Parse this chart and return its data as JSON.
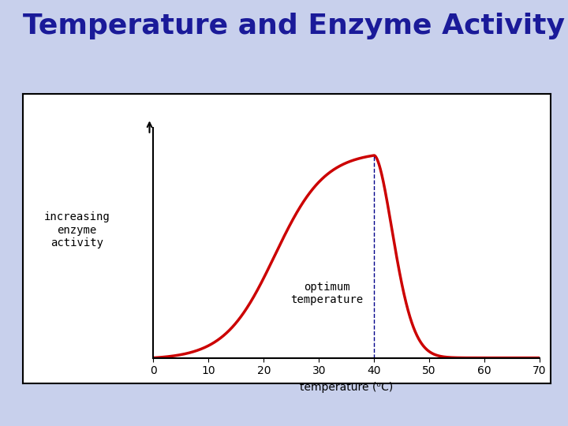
{
  "title": "Temperature and Enzyme Activity",
  "title_color": "#1a1a99",
  "title_fontsize": 26,
  "title_fontweight": "bold",
  "background_color": "#c8d0ec",
  "plot_bg_color": "#ffffff",
  "xlabel": "temperature (ᵒC)",
  "ylabel": "increasing\nenzyme\nactivity",
  "x_ticks": [
    0,
    10,
    20,
    30,
    40,
    50,
    60,
    70
  ],
  "x_min": 0,
  "x_max": 70,
  "optimum_temp": 40,
  "optimum_label": "optimum\ntemperature",
  "curve_color": "#cc0000",
  "curve_linewidth": 2.5,
  "dashed_line_color": "#00008b",
  "annotation_fontsize": 10,
  "ylabel_fontsize": 10,
  "xlabel_fontsize": 10,
  "tick_fontsize": 10
}
